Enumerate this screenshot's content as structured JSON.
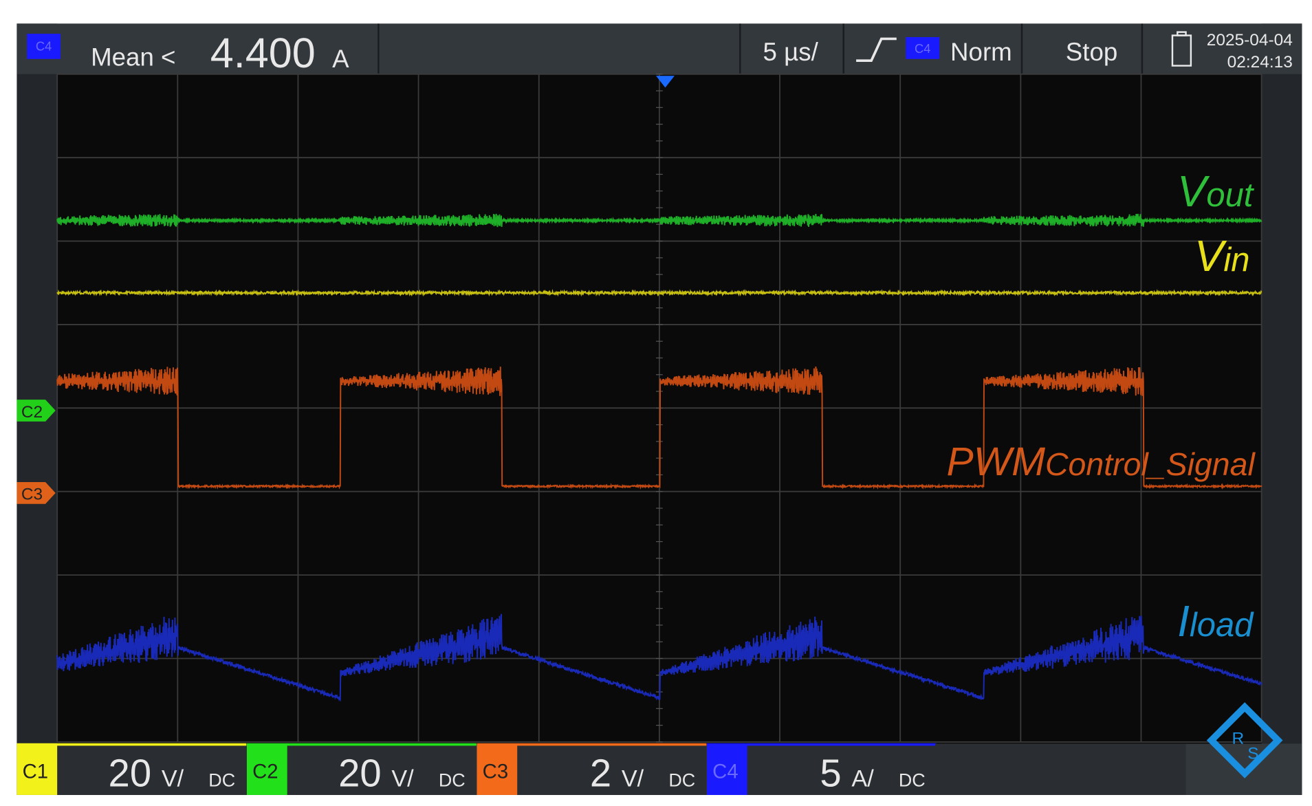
{
  "top_bar": {
    "measure_channel": "C4",
    "measure": "Mean <",
    "value": "4.400",
    "unit": "A",
    "timebase": "5 µs/",
    "trigger_channel": "C4",
    "trigger_mode": "Norm",
    "run_state": "Stop",
    "date": "2025-04-04",
    "time": "02:24:13"
  },
  "trace_labels": [
    {
      "main": "V",
      "sub": "out",
      "color": "#2fbf3a"
    },
    {
      "main": "V",
      "sub": "in",
      "color": "#e8e01a"
    },
    {
      "main": "PWM",
      "sub": "Control_Signal",
      "color": "#d4571a"
    },
    {
      "main": "I",
      "sub": "load",
      "color": "#1a8fd0"
    }
  ],
  "markers": [
    "C2",
    "C3"
  ],
  "channels": [
    {
      "name": "C1",
      "scale": "20",
      "unit": "V/",
      "coupling": "DC",
      "color": "#f2f21a"
    },
    {
      "name": "C2",
      "scale": "20",
      "unit": "V/",
      "coupling": "DC",
      "color": "#22e01a"
    },
    {
      "name": "C3",
      "scale": "2",
      "unit": "V/",
      "coupling": "DC",
      "color": "#f26a1a"
    },
    {
      "name": "C4",
      "scale": "5",
      "unit": "A/",
      "coupling": "DC",
      "color": "#1a1aff"
    }
  ],
  "logo": {
    "r": "R",
    "s": "S"
  }
}
